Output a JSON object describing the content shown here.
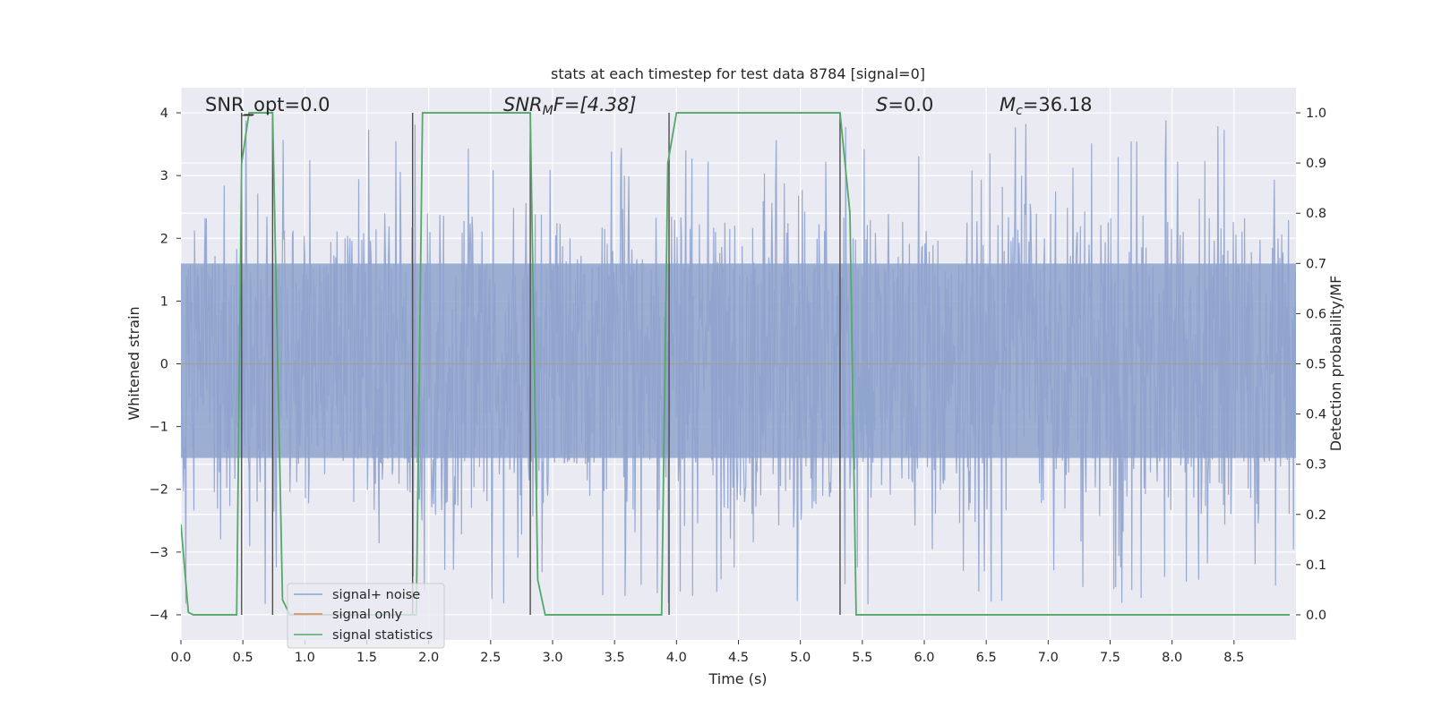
{
  "chart_data": {
    "type": "line",
    "title": "stats at each timestep for test data 8784 [signal=0]",
    "xlabel": "Time (s)",
    "ylabel": "Whitened strain",
    "y2label": "Detection probability/MF",
    "xlim": [
      0.0,
      9.0
    ],
    "ylim": [
      -4.4,
      4.4
    ],
    "y2lim": [
      -0.05,
      1.05
    ],
    "x_ticks": [
      0.0,
      0.5,
      1.0,
      1.5,
      2.0,
      2.5,
      3.0,
      3.5,
      4.0,
      4.5,
      5.0,
      5.5,
      6.0,
      6.5,
      7.0,
      7.5,
      8.0,
      8.5
    ],
    "x_tick_labels": [
      "0.0",
      "0.5",
      "1.0",
      "1.5",
      "2.0",
      "2.5",
      "3.0",
      "3.5",
      "4.0",
      "4.5",
      "5.0",
      "5.5",
      "6.0",
      "6.5",
      "7.0",
      "7.5",
      "8.0",
      "8.5"
    ],
    "y_ticks": [
      4,
      3,
      2,
      1,
      0,
      -1,
      -2,
      -3,
      -4
    ],
    "y_tick_labels": [
      "4",
      "3",
      "2",
      "1",
      "0",
      "−1",
      "−2",
      "−3",
      "−4"
    ],
    "y2_ticks": [
      1.0,
      0.9,
      0.8,
      0.7,
      0.6,
      0.5,
      0.4,
      0.3,
      0.2,
      0.1,
      0.0
    ],
    "y2_tick_labels": [
      "1.0",
      "0.9",
      "0.8",
      "0.7",
      "0.6",
      "0.5",
      "0.4",
      "0.3",
      "0.2",
      "0.1",
      "0.0"
    ],
    "grid": true,
    "legend_position": "lower-left",
    "annotations": {
      "snr_opt": "SNR_opt=0.0",
      "snr_mf_base": "SNR",
      "snr_mf_sub": "M",
      "snr_mf_rest": "F=[4.38]",
      "s_base": "S",
      "s_rest": "=0.0",
      "mc_base": "M",
      "mc_sub": "c",
      "mc_rest": "=36.18"
    },
    "series": [
      {
        "name": "signal+ noise",
        "color": "#8fa3ce",
        "description_axis": "left",
        "noise_band": {
          "core_lower": -1.5,
          "core_upper": 1.6,
          "peak_max": 3.9,
          "peak_min": -3.9,
          "x_start": 0.0,
          "x_end": 9.0
        }
      },
      {
        "name": "signal only",
        "color": "#dd8452",
        "description_axis": "left",
        "x": [
          0.0,
          9.0
        ],
        "y": [
          0.0,
          0.0
        ]
      },
      {
        "name": "signal statistics",
        "color": "#55a868",
        "description_axis": "right",
        "x": [
          0.0,
          0.06,
          0.1,
          0.45,
          0.49,
          0.55,
          0.74,
          0.82,
          0.88,
          1.9,
          1.95,
          2.82,
          2.88,
          2.94,
          3.88,
          3.93,
          4.0,
          5.32,
          5.4,
          5.45,
          8.95
        ],
        "y": [
          0.18,
          0.005,
          0.0,
          0.0,
          0.9,
          1.0,
          1.0,
          0.03,
          0.0,
          0.0,
          1.0,
          1.0,
          0.07,
          0.0,
          0.0,
          0.9,
          1.0,
          1.0,
          0.8,
          0.0,
          0.0
        ]
      }
    ],
    "vertical_markers": {
      "color": "#4d4d4d",
      "x": [
        0.49,
        0.74,
        1.87,
        2.82,
        3.94,
        5.32
      ],
      "y": [
        1.0,
        1.0,
        1.0,
        1.0,
        1.0,
        1.0
      ]
    }
  }
}
